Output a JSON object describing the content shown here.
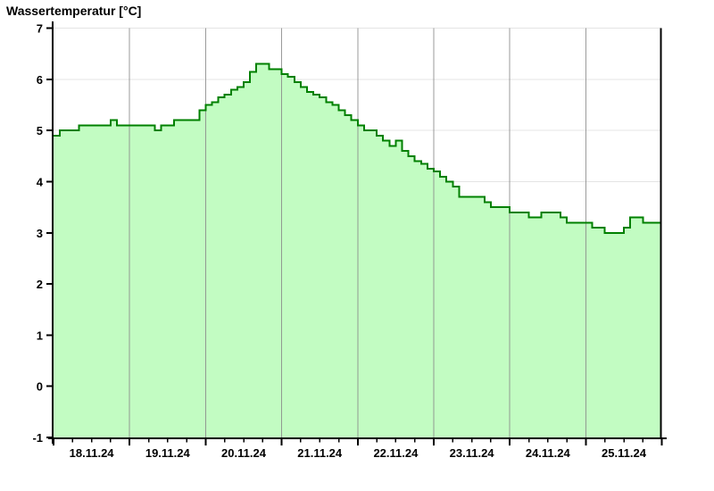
{
  "title": "Wassertemperatur [°C]",
  "chart_data": {
    "type": "area",
    "step": true,
    "series_name": "Wassertemperatur",
    "unit": "°C",
    "interval_hours": 2,
    "points_per_day": 12,
    "x_day_labels": [
      "18.11.24",
      "19.11.24",
      "20.11.24",
      "21.11.24",
      "22.11.24",
      "23.11.24",
      "24.11.24",
      "25.11.24"
    ],
    "y_ticks": [
      7,
      6,
      5,
      4,
      3,
      2,
      1,
      0,
      -1
    ],
    "ylim": [
      -1,
      7
    ],
    "grid": true,
    "legend": "none",
    "values": [
      4.9,
      5.0,
      5.0,
      5.0,
      5.1,
      5.1,
      5.1,
      5.1,
      5.1,
      5.2,
      5.1,
      5.1,
      5.1,
      5.1,
      5.1,
      5.1,
      5.0,
      5.1,
      5.1,
      5.2,
      5.2,
      5.2,
      5.2,
      5.4,
      5.5,
      5.55,
      5.65,
      5.7,
      5.8,
      5.85,
      5.95,
      6.15,
      6.3,
      6.3,
      6.2,
      6.2,
      6.1,
      6.05,
      5.95,
      5.85,
      5.75,
      5.7,
      5.65,
      5.55,
      5.5,
      5.4,
      5.3,
      5.2,
      5.1,
      5.0,
      5.0,
      4.9,
      4.8,
      4.7,
      4.8,
      4.6,
      4.5,
      4.4,
      4.35,
      4.25,
      4.2,
      4.1,
      4.0,
      3.9,
      3.7,
      3.7,
      3.7,
      3.7,
      3.6,
      3.5,
      3.5,
      3.5,
      3.4,
      3.4,
      3.4,
      3.3,
      3.3,
      3.4,
      3.4,
      3.4,
      3.3,
      3.2,
      3.2,
      3.2,
      3.2,
      3.1,
      3.1,
      3.0,
      3.0,
      3.0,
      3.1,
      3.3,
      3.3,
      3.2,
      3.2,
      3.2
    ],
    "colors": {
      "fill": "#c2fcc2",
      "line": "#008000",
      "day_grid": "#8a8a8a",
      "h_grid": "#e4e4e4",
      "axis": "#000000",
      "background": "#ffffff"
    }
  }
}
